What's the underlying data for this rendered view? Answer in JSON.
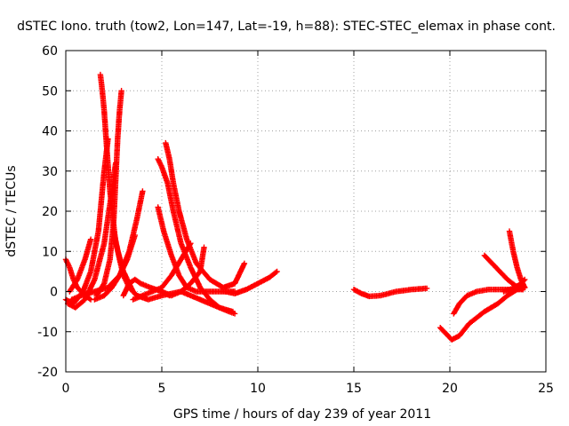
{
  "chart_data": {
    "type": "scatter",
    "title": "dSTEC Iono. truth (tow2, Lon=147, Lat=-19, h=88): STEC-STEC_elemax in phase cont.",
    "xlabel": "GPS time / hours of day 239 of year 2011",
    "ylabel": "dSTEC  / TECUs",
    "xlim": [
      0,
      25
    ],
    "ylim": [
      -20,
      60
    ],
    "xticks": [
      0,
      5,
      10,
      15,
      20,
      25
    ],
    "yticks": [
      -20,
      -10,
      0,
      10,
      20,
      30,
      40,
      50,
      60
    ],
    "xtick_labels": [
      "0",
      "5",
      "10",
      "15",
      "20",
      "25"
    ],
    "ytick_labels": [
      "-20",
      "-10",
      "0",
      "10",
      "20",
      "30",
      "40",
      "50",
      "60"
    ],
    "grid": true,
    "marker": "plus",
    "color": "#ff0000",
    "series": [
      {
        "x": [
          0.0,
          0.4,
          0.9,
          1.3,
          1.7,
          2.0,
          2.2
        ],
        "y": [
          -2,
          -3,
          0,
          5,
          15,
          30,
          38
        ]
      },
      {
        "x": [
          1.8,
          1.9,
          2.0,
          2.1,
          2.3,
          2.6,
          3.0,
          3.5
        ],
        "y": [
          54,
          50,
          45,
          38,
          25,
          12,
          5,
          0
        ]
      },
      {
        "x": [
          2.9,
          2.8,
          2.7,
          2.6,
          2.5,
          2.3,
          2.0,
          1.6
        ],
        "y": [
          50,
          45,
          38,
          28,
          18,
          8,
          2,
          -1
        ]
      },
      {
        "x": [
          0.1,
          0.5,
          1.0,
          1.5,
          2.0,
          2.4,
          2.6
        ],
        "y": [
          -3,
          -4,
          -2,
          3,
          12,
          25,
          32
        ]
      },
      {
        "x": [
          0.0,
          0.2,
          0.4,
          0.6,
          0.8,
          1.0,
          1.3
        ],
        "y": [
          8,
          6,
          3,
          1,
          0,
          -1,
          -2
        ]
      },
      {
        "x": [
          0.2,
          0.6,
          1.0,
          1.3
        ],
        "y": [
          0,
          3,
          8,
          13
        ]
      },
      {
        "x": [
          0.3,
          0.8,
          1.5,
          2.2,
          2.8,
          3.3,
          3.7,
          4.0
        ],
        "y": [
          -2,
          -1,
          0,
          1,
          4,
          10,
          18,
          25
        ]
      },
      {
        "x": [
          1.5,
          2.0,
          2.4,
          2.8,
          3.2,
          3.6
        ],
        "y": [
          -2,
          -1,
          1,
          4,
          8,
          14
        ]
      },
      {
        "x": [
          2.5,
          2.8,
          3.0,
          3.3,
          3.7,
          4.3,
          5.0,
          6.0,
          7.0,
          8.0,
          8.7
        ],
        "y": [
          15,
          8,
          4,
          1,
          -1,
          -2,
          -1,
          0,
          -2,
          -4,
          -5
        ]
      },
      {
        "x": [
          3.0,
          3.3,
          3.6,
          3.9,
          4.4,
          5.0,
          5.4
        ],
        "y": [
          -1,
          2,
          3,
          2,
          1,
          0,
          -1
        ]
      },
      {
        "x": [
          4.8,
          5.0,
          5.3,
          5.6,
          6.0,
          6.5,
          7.0,
          7.5,
          8.0,
          8.5,
          8.8
        ],
        "y": [
          33,
          31,
          27,
          20,
          12,
          6,
          1,
          -2,
          -4,
          -5,
          -5.5
        ]
      },
      {
        "x": [
          5.2,
          5.4,
          5.6,
          5.9,
          6.3,
          6.8,
          7.5,
          8.2,
          8.8,
          9.3
        ],
        "y": [
          37,
          33,
          27,
          20,
          13,
          7,
          3,
          1,
          2,
          7
        ]
      },
      {
        "x": [
          4.8,
          5.1,
          5.5,
          5.9,
          6.3,
          6.8,
          7.3,
          7.8,
          8.3,
          8.8
        ],
        "y": [
          21,
          15,
          9,
          4,
          1,
          0,
          0,
          0,
          0,
          0
        ]
      },
      {
        "x": [
          3.5,
          4.0,
          4.5,
          5.0,
          5.5,
          6.0,
          6.5
        ],
        "y": [
          -2,
          -1,
          0,
          1,
          4,
          8,
          12
        ]
      },
      {
        "x": [
          5.0,
          5.5,
          6.0,
          6.5,
          7.0,
          7.2
        ],
        "y": [
          0,
          -1,
          0,
          2,
          5,
          11
        ]
      },
      {
        "x": [
          8.3,
          8.8,
          9.4,
          10.0,
          10.6,
          11.0
        ],
        "y": [
          0,
          -0.5,
          0.5,
          2,
          3.5,
          5
        ]
      },
      {
        "x": [
          15.0,
          15.4,
          15.8,
          16.4,
          17.2,
          18.0,
          18.8
        ],
        "y": [
          0.5,
          -0.5,
          -1.2,
          -1,
          0,
          0.5,
          0.8
        ]
      },
      {
        "x": [
          19.5,
          19.8,
          20.1,
          20.5,
          21.0,
          21.8,
          22.5,
          23.0,
          23.5,
          23.9
        ],
        "y": [
          -9,
          -10.5,
          -12,
          -11,
          -8,
          -5,
          -3,
          -1,
          0.5,
          1
        ]
      },
      {
        "x": [
          20.2,
          20.5,
          20.9,
          21.4,
          22.0,
          22.6,
          23.2,
          23.8
        ],
        "y": [
          -5.5,
          -3,
          -1,
          0,
          0.5,
          0.5,
          0.5,
          0.5
        ]
      },
      {
        "x": [
          21.8,
          22.2,
          22.6,
          23.0,
          23.4,
          23.8
        ],
        "y": [
          9,
          7,
          5,
          3,
          1.5,
          0.5
        ]
      },
      {
        "x": [
          23.1,
          23.3,
          23.5,
          23.7,
          23.9
        ],
        "y": [
          15,
          10,
          6,
          3,
          1
        ]
      },
      {
        "x": [
          22.8,
          23.1,
          23.4,
          23.7,
          23.9
        ],
        "y": [
          0,
          0.5,
          1,
          2,
          3
        ]
      }
    ]
  }
}
